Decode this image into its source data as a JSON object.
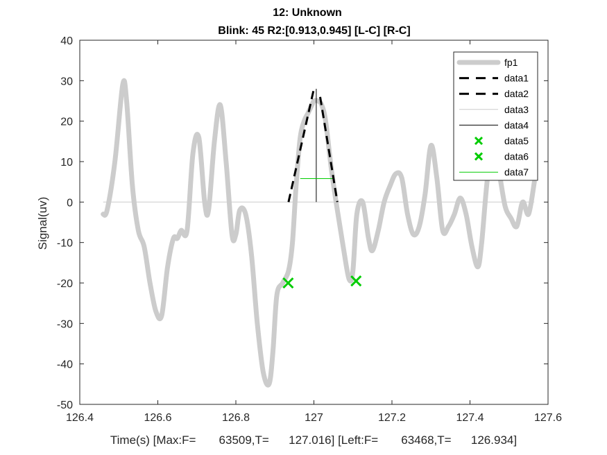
{
  "colors": {
    "title": "#ff0000",
    "fp1": "#cccccc",
    "data1": "#000000",
    "data2": "#000000",
    "data3": "#cccccc",
    "data4": "#000000",
    "marker": "#00cc00",
    "data7": "#00cc00",
    "axis": "#262626"
  },
  "chart_data": {
    "type": "line",
    "title": "12: Unknown",
    "subtitle": "Blink: 45 R2:[0.913,0.945]  [L-C] [R-C]",
    "xlabel": "Time(s) [Max:F=       63509,T=      127.016] [Left:F=       63468,T=      126.934]",
    "ylabel": "Signal(uv)",
    "xlim": [
      126.4,
      127.6
    ],
    "ylim": [
      -50,
      40
    ],
    "xticks": [
      "126.4",
      "126.6",
      "126.8",
      "127",
      "127.2",
      "127.4",
      "127.6"
    ],
    "xtick_values": [
      126.4,
      126.6,
      126.8,
      127.0,
      127.2,
      127.4,
      127.6
    ],
    "yticks": [
      "40",
      "30",
      "20",
      "10",
      "0",
      "-10",
      "-20",
      "-30",
      "-40",
      "-50"
    ],
    "ytick_values": [
      40,
      30,
      20,
      10,
      0,
      -10,
      -20,
      -30,
      -40,
      -50
    ],
    "grid": false,
    "legend_position": "top-right",
    "series": [
      {
        "name": "fp1",
        "style": "thick-solid",
        "x": [
          126.46,
          126.47,
          126.49,
          126.51,
          126.52,
          126.535,
          126.55,
          126.565,
          126.58,
          126.595,
          126.61,
          126.625,
          126.64,
          126.65,
          126.66,
          126.675,
          126.69,
          126.705,
          126.72,
          126.73,
          126.745,
          126.76,
          126.775,
          126.79,
          126.8,
          126.81,
          126.825,
          126.84,
          126.855,
          126.87,
          126.885,
          126.895,
          126.905,
          126.92,
          126.935,
          126.945,
          126.955,
          126.965,
          126.975,
          126.985,
          126.995,
          127.0,
          127.01,
          127.02,
          127.03,
          127.045,
          127.06,
          127.075,
          127.09,
          127.1,
          127.11,
          127.125,
          127.14,
          127.15,
          127.165,
          127.18,
          127.195,
          127.21,
          127.225,
          127.24,
          127.255,
          127.27,
          127.285,
          127.3,
          127.315,
          127.33,
          127.345,
          127.36,
          127.375,
          127.39,
          127.405,
          127.42,
          127.43,
          127.445,
          127.46,
          127.475,
          127.49,
          127.505,
          127.52,
          127.535,
          127.55,
          127.565
        ],
        "y": [
          -3,
          -2,
          10,
          29,
          25,
          4,
          -7,
          -11,
          -20,
          -27,
          -28,
          -16,
          -9,
          -9,
          -7,
          -7,
          12,
          16,
          0,
          -2,
          15,
          24,
          10,
          -8,
          -8,
          -2,
          -3,
          -13,
          -30,
          -42,
          -45,
          -37,
          -23,
          -20,
          -17,
          -10,
          5,
          16,
          20,
          22,
          24,
          25,
          25,
          24,
          20,
          8,
          -2,
          -11,
          -19,
          -17,
          -3,
          0,
          -9,
          -12,
          -7,
          0,
          4,
          7,
          6,
          -3,
          -8,
          -6,
          2,
          14,
          6,
          -7,
          -6,
          -3,
          1,
          -3,
          -11,
          -16,
          -10,
          6,
          12,
          7,
          -1,
          -4,
          -6,
          0,
          -3,
          5
        ]
      },
      {
        "name": "data1",
        "style": "dashed",
        "x": [
          126.935,
          127.0
        ],
        "y": [
          0,
          28
        ]
      },
      {
        "name": "data2",
        "style": "dashed",
        "x": [
          127.016,
          127.06
        ],
        "y": [
          26,
          0
        ]
      },
      {
        "name": "data3",
        "style": "thin-solid",
        "x": [
          126.46,
          127.565
        ],
        "y": [
          0,
          0
        ]
      },
      {
        "name": "data4",
        "style": "thin-solid",
        "x": [
          127.006,
          127.006
        ],
        "y": [
          0,
          28
        ]
      },
      {
        "name": "data5",
        "style": "marker-x",
        "x": [
          126.934
        ],
        "y": [
          -20
        ]
      },
      {
        "name": "data6",
        "style": "marker-x",
        "x": [
          127.108
        ],
        "y": [
          -19.5
        ]
      },
      {
        "name": "data7",
        "style": "thin-solid",
        "x": [
          126.965,
          127.05
        ],
        "y": [
          5.8,
          5.8
        ]
      }
    ],
    "legend": [
      "fp1",
      "data1",
      "data2",
      "data3",
      "data4",
      "data5",
      "data6",
      "data7"
    ]
  }
}
